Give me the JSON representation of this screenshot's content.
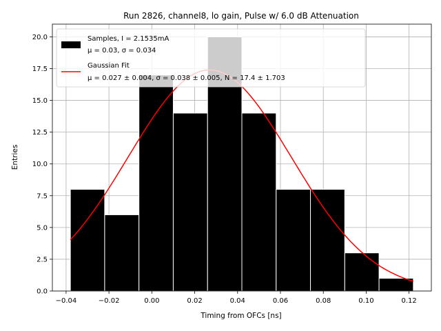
{
  "chart_data": {
    "type": "bar",
    "title": "Run 2826, channel8, lo gain, Pulse w/ 6.0 dB Attenuation",
    "xlabel": "Timing from OFCs [ns]",
    "ylabel": "Entries",
    "xlim": [
      -0.0464,
      0.1304
    ],
    "ylim": [
      0,
      21
    ],
    "grid": true,
    "legend_placement": "top-left",
    "histogram": {
      "bin_edges": [
        -0.038,
        -0.022,
        -0.006,
        0.01,
        0.026,
        0.042,
        0.058,
        0.074,
        0.09,
        0.106,
        0.122
      ],
      "counts": [
        8,
        6,
        17,
        14,
        20,
        14,
        8,
        8,
        3,
        1
      ],
      "color": "#000000",
      "edge_color": "#ffffff"
    },
    "fit_curve": {
      "mu": 0.027,
      "sigma": 0.038,
      "N": 17.4,
      "x_range": [
        -0.038,
        0.122
      ],
      "color": "#ff0000"
    },
    "legend": [
      {
        "line1": "Samples, I = 2.1535mA",
        "line2": "μ = 0.03, σ = 0.034",
        "kind": "patch"
      },
      {
        "line1": "Gaussian Fit",
        "line2": "μ = 0.027 ± 0.004, σ = 0.038 ± 0.005, N = 17.4 ± 1.703",
        "kind": "line"
      }
    ],
    "x_ticks": [
      -0.04,
      -0.02,
      0.0,
      0.02,
      0.04,
      0.06,
      0.08,
      0.1,
      0.12
    ],
    "x_tick_labels": [
      "−0.04",
      "−0.02",
      "0.00",
      "0.02",
      "0.04",
      "0.06",
      "0.08",
      "0.10",
      "0.12"
    ],
    "y_ticks": [
      0,
      2.5,
      5,
      7.5,
      10,
      12.5,
      15,
      17.5,
      20
    ],
    "y_tick_labels": [
      "0.0",
      "2.5",
      "5.0",
      "7.5",
      "10.0",
      "12.5",
      "15.0",
      "17.5",
      "20.0"
    ]
  }
}
